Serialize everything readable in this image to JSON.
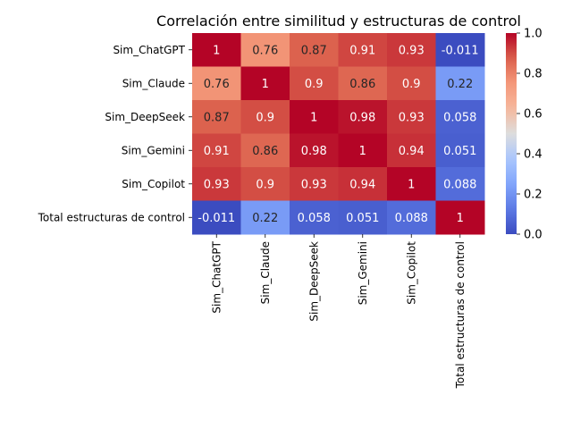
{
  "chart_data": {
    "type": "heatmap",
    "title": "Correlación entre similitud y estructuras de control",
    "xlabel": "",
    "ylabel": "",
    "row_labels": [
      "Sim_ChatGPT",
      "Sim_Claude",
      "Sim_DeepSeek",
      "Sim_Gemini",
      "Sim_Copilot",
      "Total estructuras de control"
    ],
    "col_labels": [
      "Sim_ChatGPT",
      "Sim_Claude",
      "Sim_DeepSeek",
      "Sim_Gemini",
      "Sim_Copilot",
      "Total estructuras de control"
    ],
    "values": [
      [
        1,
        0.76,
        0.87,
        0.91,
        0.93,
        -0.011
      ],
      [
        0.76,
        1,
        0.9,
        0.86,
        0.9,
        0.22
      ],
      [
        0.87,
        0.9,
        1,
        0.98,
        0.93,
        0.058
      ],
      [
        0.91,
        0.86,
        0.98,
        1,
        0.94,
        0.051
      ],
      [
        0.93,
        0.9,
        0.93,
        0.94,
        1,
        0.088
      ],
      [
        -0.011,
        0.22,
        0.058,
        0.051,
        0.088,
        1
      ]
    ],
    "cell_labels": [
      [
        "1",
        "0.76",
        "0.87",
        "0.91",
        "0.93",
        "-0.011"
      ],
      [
        "0.76",
        "1",
        "0.9",
        "0.86",
        "0.9",
        "0.22"
      ],
      [
        "0.87",
        "0.9",
        "1",
        "0.98",
        "0.93",
        "0.058"
      ],
      [
        "0.91",
        "0.86",
        "0.98",
        "1",
        "0.94",
        "0.051"
      ],
      [
        "0.93",
        "0.9",
        "0.93",
        "0.94",
        "1",
        "0.088"
      ],
      [
        "-0.011",
        "0.22",
        "0.058",
        "0.051",
        "0.088",
        "1"
      ]
    ],
    "colormap": "coolwarm",
    "colorbar": {
      "range": [
        0.0,
        1.0
      ],
      "ticks": [
        0.0,
        0.2,
        0.4,
        0.6,
        0.8,
        1.0
      ],
      "tick_labels": [
        "0.0",
        "0.2",
        "0.4",
        "0.6",
        "0.8",
        "1.0"
      ]
    },
    "colors": {
      "cold": "#3b4cc0",
      "neutral": "#dddddd",
      "warm": "#b40426"
    }
  }
}
